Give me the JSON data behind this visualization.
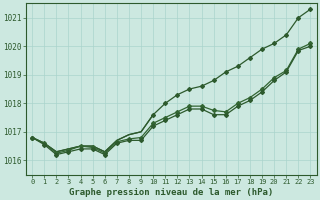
{
  "xlabel": "Graphe pression niveau de la mer (hPa)",
  "ylim": [
    1015.5,
    1021.5
  ],
  "xlim": [
    -0.5,
    23.5
  ],
  "yticks": [
    1016,
    1017,
    1018,
    1019,
    1020,
    1021
  ],
  "xticks": [
    0,
    1,
    2,
    3,
    4,
    5,
    6,
    7,
    8,
    9,
    10,
    11,
    12,
    13,
    14,
    15,
    16,
    17,
    18,
    19,
    20,
    21,
    22,
    23
  ],
  "bg_color": "#cce8e0",
  "grid_color": "#aad4cc",
  "line_color_dark": "#2d5a2d",
  "line_color_mid": "#336633",
  "x_hours": [
    0,
    1,
    2,
    3,
    4,
    5,
    6,
    7,
    8,
    9,
    10,
    11,
    12,
    13,
    14,
    15,
    16,
    17,
    18,
    19,
    20,
    21,
    22,
    23
  ],
  "series_upper": [
    1016.8,
    1016.6,
    1016.3,
    1016.4,
    1016.5,
    1016.5,
    1016.3,
    1016.7,
    1016.9,
    1017.0,
    1017.6,
    1018.0,
    1018.3,
    1018.5,
    1018.6,
    1018.8,
    1019.1,
    1019.3,
    1019.6,
    1019.9,
    1020.1,
    1020.4,
    1021.0,
    1021.3
  ],
  "series_mid": [
    1016.8,
    1016.6,
    1016.25,
    1016.35,
    1016.5,
    1016.45,
    1016.25,
    1016.65,
    1016.75,
    1016.8,
    1017.3,
    1017.5,
    1017.7,
    1017.9,
    1017.9,
    1017.75,
    1017.7,
    1018.0,
    1018.2,
    1018.5,
    1018.9,
    1019.15,
    1019.9,
    1020.1
  ],
  "series_lower": [
    1016.8,
    1016.55,
    1016.2,
    1016.3,
    1016.4,
    1016.4,
    1016.2,
    1016.6,
    1016.7,
    1016.7,
    1017.2,
    1017.4,
    1017.6,
    1017.8,
    1017.8,
    1017.6,
    1017.6,
    1017.9,
    1018.1,
    1018.4,
    1018.8,
    1019.1,
    1019.85,
    1020.0
  ]
}
